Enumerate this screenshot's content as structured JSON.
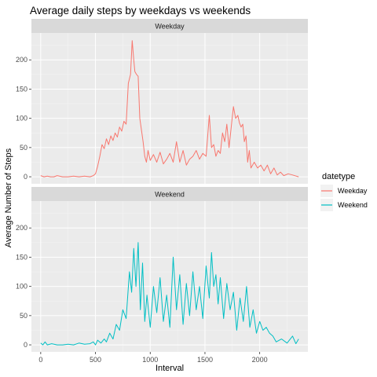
{
  "chart_data": {
    "type": "line",
    "title": "Average daily steps by weekdays vs weekends",
    "xlabel": "Interval",
    "ylabel": "Average Number of Steps",
    "xlim": [
      -85,
      2440
    ],
    "ylim": [
      -12,
      246
    ],
    "x_ticks": [
      0,
      500,
      1000,
      1500,
      2000
    ],
    "y_ticks": [
      0,
      50,
      100,
      150,
      200
    ],
    "grid": true,
    "legend": {
      "title": "datetype",
      "position": "right"
    },
    "panels": [
      {
        "label": "Weekday",
        "series": "Weekday"
      },
      {
        "label": "Weekend",
        "series": "Weekend"
      }
    ],
    "series": [
      {
        "name": "Weekday",
        "color": "#F8766D",
        "x": [
          0,
          30,
          60,
          90,
          120,
          150,
          200,
          250,
          300,
          350,
          400,
          450,
          480,
          500,
          520,
          540,
          560,
          580,
          600,
          620,
          640,
          660,
          680,
          700,
          720,
          740,
          760,
          780,
          800,
          820,
          835,
          850,
          860,
          875,
          890,
          905,
          920,
          935,
          950,
          965,
          980,
          1000,
          1030,
          1060,
          1090,
          1120,
          1150,
          1180,
          1210,
          1240,
          1270,
          1300,
          1330,
          1360,
          1390,
          1420,
          1450,
          1480,
          1510,
          1540,
          1560,
          1580,
          1600,
          1620,
          1640,
          1660,
          1680,
          1700,
          1720,
          1740,
          1760,
          1780,
          1800,
          1815,
          1830,
          1845,
          1860,
          1875,
          1890,
          1905,
          1920,
          1950,
          1980,
          2010,
          2040,
          2070,
          2100,
          2130,
          2160,
          2190,
          2220,
          2260,
          2300,
          2355
        ],
        "y": [
          2,
          0,
          1,
          0,
          0,
          2,
          0,
          0,
          1,
          0,
          1,
          0,
          2,
          5,
          18,
          35,
          55,
          48,
          65,
          55,
          70,
          62,
          75,
          68,
          85,
          78,
          95,
          90,
          160,
          175,
          233,
          200,
          180,
          175,
          172,
          100,
          80,
          60,
          35,
          25,
          45,
          28,
          38,
          25,
          42,
          22,
          30,
          40,
          25,
          60,
          25,
          45,
          20,
          30,
          35,
          45,
          30,
          40,
          35,
          105,
          50,
          55,
          35,
          45,
          40,
          75,
          60,
          90,
          50,
          85,
          120,
          100,
          105,
          92,
          85,
          90,
          60,
          70,
          25,
          45,
          15,
          25,
          15,
          20,
          10,
          20,
          5,
          15,
          3,
          8,
          2,
          5,
          3,
          0
        ]
      },
      {
        "name": "Weekend",
        "color": "#00BFC4",
        "x": [
          0,
          20,
          40,
          60,
          100,
          150,
          200,
          250,
          300,
          350,
          400,
          450,
          480,
          500,
          520,
          550,
          580,
          600,
          630,
          660,
          690,
          720,
          750,
          780,
          810,
          830,
          850,
          870,
          890,
          910,
          930,
          950,
          970,
          1000,
          1030,
          1060,
          1090,
          1120,
          1150,
          1180,
          1210,
          1240,
          1270,
          1300,
          1330,
          1360,
          1390,
          1420,
          1450,
          1480,
          1510,
          1540,
          1560,
          1580,
          1600,
          1620,
          1640,
          1670,
          1700,
          1730,
          1760,
          1790,
          1820,
          1850,
          1880,
          1910,
          1940,
          1970,
          2000,
          2030,
          2060,
          2090,
          2120,
          2150,
          2200,
          2250,
          2300,
          2330,
          2355
        ],
        "y": [
          3,
          0,
          5,
          0,
          2,
          0,
          0,
          1,
          0,
          3,
          1,
          2,
          5,
          0,
          8,
          3,
          10,
          5,
          20,
          10,
          35,
          25,
          60,
          45,
          125,
          90,
          165,
          100,
          175,
          60,
          140,
          40,
          85,
          30,
          100,
          55,
          115,
          40,
          85,
          30,
          150,
          60,
          120,
          35,
          105,
          50,
          125,
          60,
          100,
          45,
          135,
          80,
          158,
          100,
          120,
          70,
          115,
          45,
          105,
          60,
          90,
          25,
          80,
          40,
          100,
          30,
          60,
          20,
          40,
          25,
          30,
          20,
          15,
          5,
          10,
          3,
          15,
          2,
          10
        ]
      }
    ]
  }
}
